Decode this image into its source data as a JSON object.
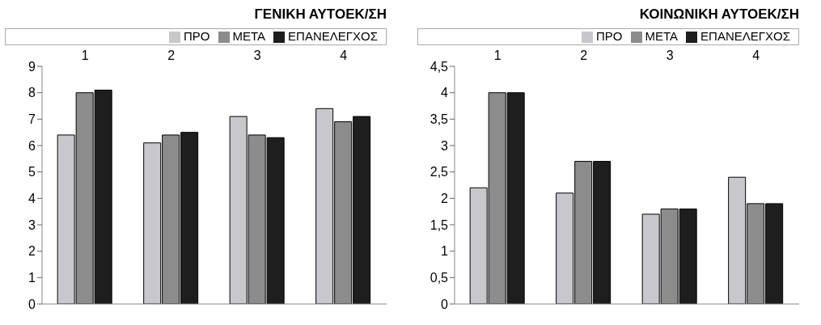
{
  "chart_data": [
    {
      "type": "bar",
      "title": "ΓΕΝΙΚΗ ΑΥΤΟΕΚ/ΣΗ",
      "categories": [
        "1",
        "2",
        "3",
        "4"
      ],
      "series": [
        {
          "name": "ΠΡΟ",
          "color": "#c8c8cc",
          "values": [
            6.4,
            6.1,
            7.1,
            7.4
          ]
        },
        {
          "name": "ΜΕΤΑ",
          "color": "#8c8c8c",
          "values": [
            8.0,
            6.4,
            6.4,
            6.9
          ]
        },
        {
          "name": "ΕΠΑΝΕΛΕΓΧΟΣ",
          "color": "#1e1e1e",
          "values": [
            8.1,
            6.5,
            6.3,
            7.1
          ]
        }
      ],
      "ylim": [
        0,
        9
      ],
      "yticks": [
        0,
        1,
        2,
        3,
        4,
        5,
        6,
        7,
        8,
        9
      ],
      "grid": false,
      "legend": "top right"
    },
    {
      "type": "bar",
      "title": "ΚΟΙΝΩΝΙΚΗ ΑΥΤΟΕΚ/ΣΗ",
      "categories": [
        "1",
        "2",
        "3",
        "4"
      ],
      "series": [
        {
          "name": "ΠΡΟ",
          "color": "#c8c8cc",
          "values": [
            2.2,
            2.1,
            1.7,
            2.4
          ]
        },
        {
          "name": "ΜΕΤΑ",
          "color": "#8c8c8c",
          "values": [
            4.0,
            2.7,
            1.8,
            1.9
          ]
        },
        {
          "name": "ΕΠΑΝΕΛΕΓΧΟΣ",
          "color": "#1e1e1e",
          "values": [
            4.0,
            2.7,
            1.8,
            1.9
          ]
        }
      ],
      "ylim": [
        0,
        4.5
      ],
      "yticks": [
        0,
        {
          "value": 0.5,
          "label": "0,5"
        },
        1,
        {
          "value": 1.5,
          "label": "1,5"
        },
        2,
        {
          "value": 2.5,
          "label": "2,5"
        },
        3,
        {
          "value": 3.5,
          "label": "3,5"
        },
        4,
        {
          "value": 4.5,
          "label": "4,5"
        }
      ],
      "grid": false,
      "legend": "top right"
    }
  ]
}
